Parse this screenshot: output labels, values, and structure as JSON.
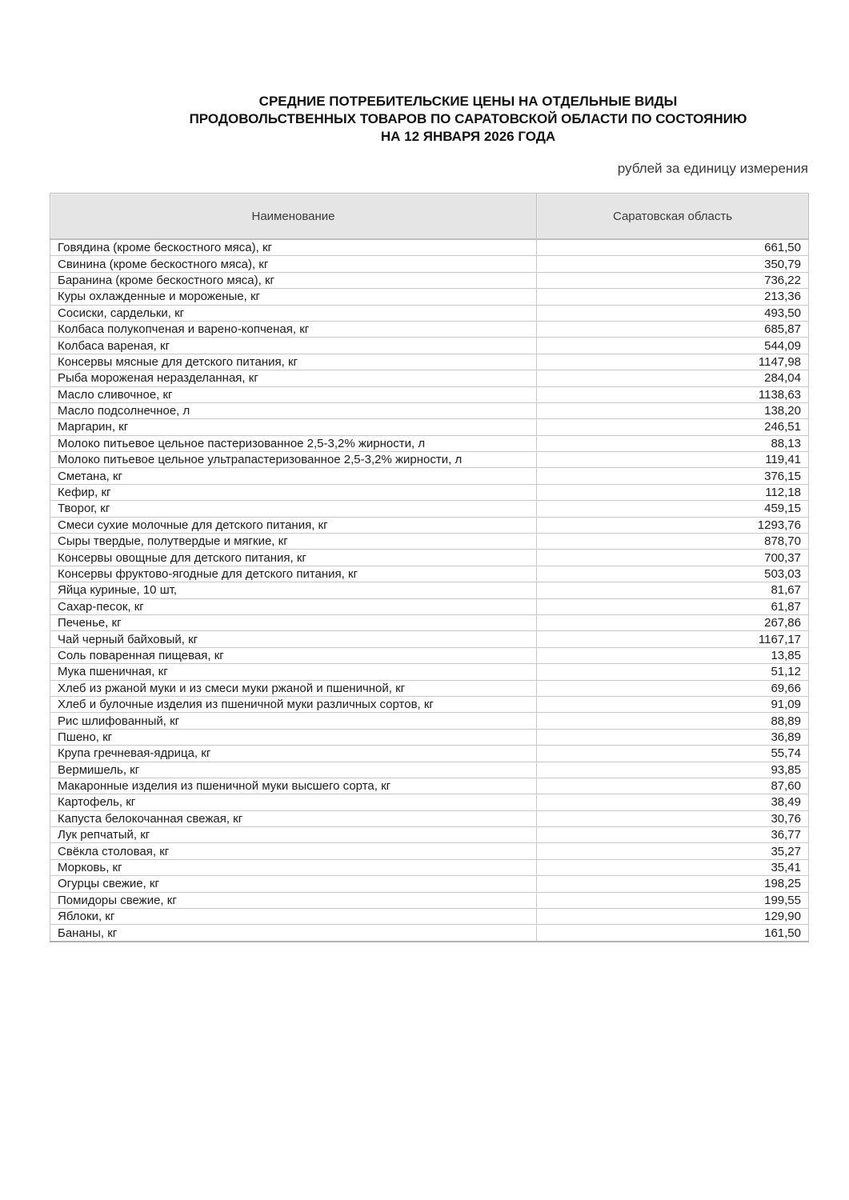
{
  "page": {
    "title": "СРЕДНИЕ ПОТРЕБИТЕЛЬСКИЕ ЦЕНЫ НА ОТДЕЛЬНЫЕ ВИДЫ\nПРОДОВОЛЬСТВЕННЫХ ТОВАРОВ ПО САРАТОВСКОЙ ОБЛАСТИ ПО СОСТОЯНИЮ\nНА 12 ЯНВАРЯ 2026 ГОДА",
    "units_note": "рублей за единицу измерения"
  },
  "colors": {
    "header_bg": "#e5e5e5",
    "border": "#c9c9c9",
    "text": "#1c1c1c"
  },
  "table": {
    "columns": [
      "Наименование",
      "Саратовская область"
    ],
    "rows": [
      {
        "name": "Говядина (кроме бескостного мяса), кг",
        "value": "661,50"
      },
      {
        "name": "Свинина (кроме бескостного мяса), кг",
        "value": "350,79"
      },
      {
        "name": "Баранина (кроме бескостного мяса), кг",
        "value": "736,22"
      },
      {
        "name": "Куры охлажденные и мороженые, кг",
        "value": "213,36"
      },
      {
        "name": "Сосиски, сардельки, кг",
        "value": "493,50"
      },
      {
        "name": "Колбаса полукопченая и варено-копченая, кг",
        "value": "685,87"
      },
      {
        "name": "Колбаса вареная, кг",
        "value": "544,09"
      },
      {
        "name": "Консервы мясные для детского питания, кг",
        "value": "1147,98"
      },
      {
        "name": "Рыба мороженая неразделанная, кг",
        "value": "284,04"
      },
      {
        "name": "Масло сливочное, кг",
        "value": "1138,63"
      },
      {
        "name": "Масло подсолнечное, л",
        "value": "138,20"
      },
      {
        "name": "Маргарин, кг",
        "value": "246,51"
      },
      {
        "name": "Молоко питьевое цельное пастеризованное 2,5-3,2% жирности, л",
        "value": "88,13"
      },
      {
        "name": "Молоко питьевое цельное ультрапастеризованное 2,5-3,2% жирности, л",
        "value": "119,41"
      },
      {
        "name": "Сметана, кг",
        "value": "376,15"
      },
      {
        "name": "Кефир, кг",
        "value": "112,18"
      },
      {
        "name": "Творог, кг",
        "value": "459,15"
      },
      {
        "name": "Смеси сухие молочные для детского питания, кг",
        "value": "1293,76"
      },
      {
        "name": "Сыры твердые, полутвердые и мягкие, кг",
        "value": "878,70"
      },
      {
        "name": "Консервы овощные для детского питания, кг",
        "value": "700,37"
      },
      {
        "name": "Консервы фруктово-ягодные для детского питания, кг",
        "value": "503,03"
      },
      {
        "name": "Яйца куриные, 10 шт,",
        "value": "81,67"
      },
      {
        "name": "Сахар-песок, кг",
        "value": "61,87"
      },
      {
        "name": "Печенье, кг",
        "value": "267,86"
      },
      {
        "name": "Чай черный байховый, кг",
        "value": "1167,17"
      },
      {
        "name": "Соль поваренная пищевая, кг",
        "value": "13,85"
      },
      {
        "name": "Мука пшеничная, кг",
        "value": "51,12"
      },
      {
        "name": "Хлеб из ржаной муки и из смеси муки ржаной и пшеничной, кг",
        "value": "69,66"
      },
      {
        "name": "Хлеб и булочные изделия из пшеничной муки различных сортов, кг",
        "value": "91,09"
      },
      {
        "name": "Рис шлифованный, кг",
        "value": "88,89"
      },
      {
        "name": "Пшено, кг",
        "value": "36,89"
      },
      {
        "name": "Крупа гречневая-ядрица, кг",
        "value": "55,74"
      },
      {
        "name": "Вермишель, кг",
        "value": "93,85"
      },
      {
        "name": "Макаронные изделия из пшеничной муки высшего сорта, кг",
        "value": "87,60"
      },
      {
        "name": "Картофель, кг",
        "value": "38,49"
      },
      {
        "name": "Капуста белокочанная свежая, кг",
        "value": "30,76"
      },
      {
        "name": "Лук репчатый, кг",
        "value": "36,77"
      },
      {
        "name": "Свёкла столовая, кг",
        "value": "35,27"
      },
      {
        "name": "Морковь, кг",
        "value": "35,41"
      },
      {
        "name": "Огурцы свежие, кг",
        "value": "198,25"
      },
      {
        "name": "Помидоры свежие, кг",
        "value": "199,55"
      },
      {
        "name": "Яблоки, кг",
        "value": "129,90"
      },
      {
        "name": "Бананы, кг",
        "value": "161,50"
      }
    ]
  }
}
